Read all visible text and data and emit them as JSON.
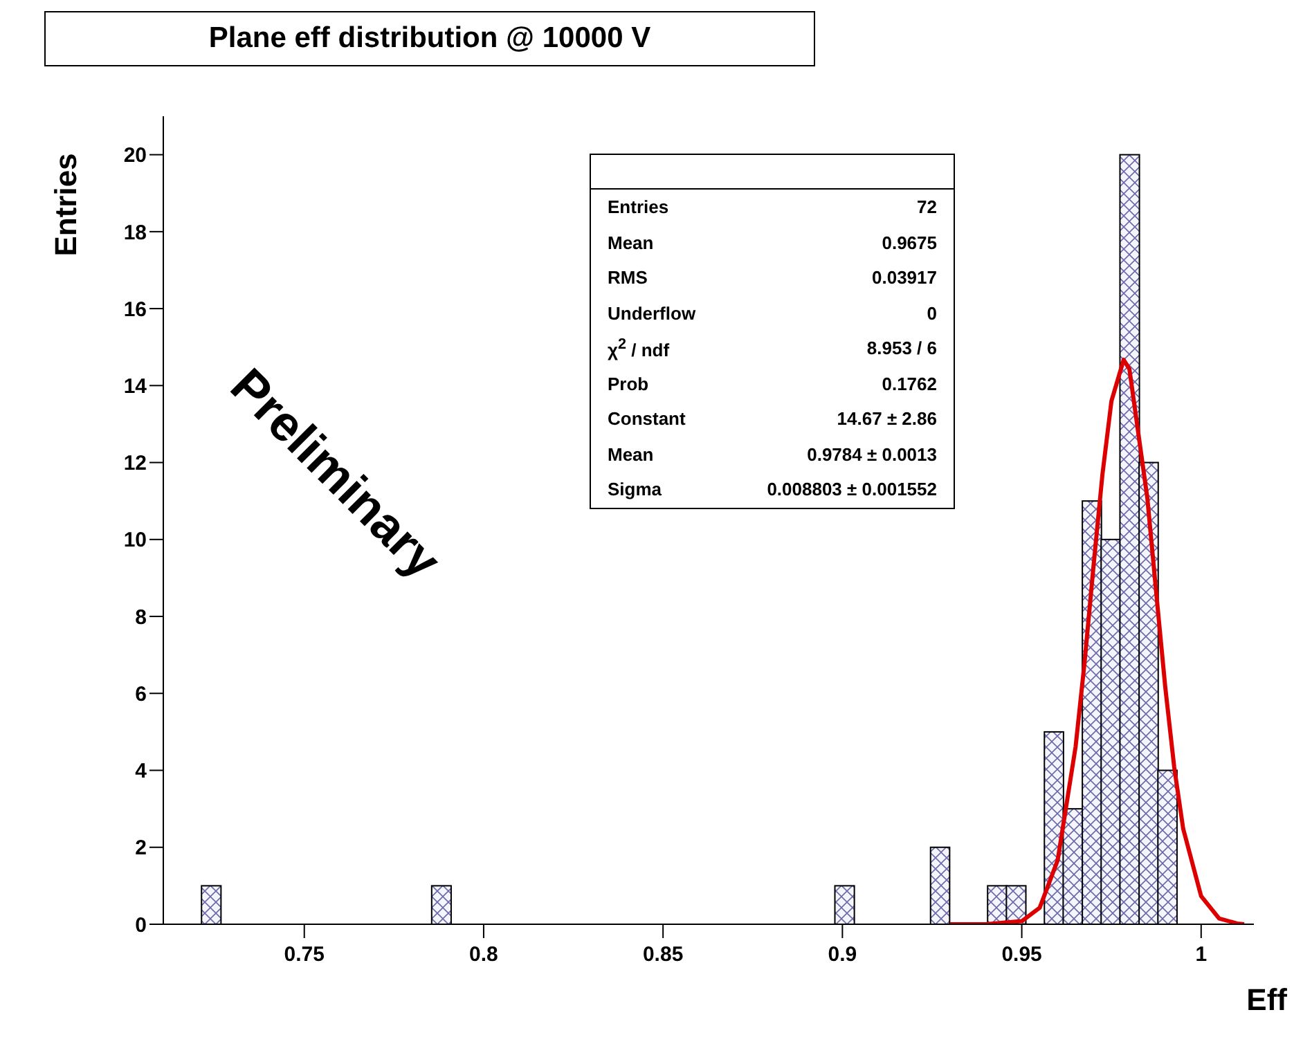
{
  "chart_data": {
    "type": "histogram",
    "title": "Plane eff distribution @ 10000 V",
    "xlabel": "Eff",
    "ylabel": "Entries",
    "bins": [
      0.7213,
      0.7267,
      0.7853,
      0.7907,
      0.8973,
      0.9027,
      0.924,
      0.9293,
      0.94,
      0.9453,
      0.9507,
      0.956,
      0.9613,
      0.9667,
      0.972,
      0.9773,
      0.9827,
      0.988,
      0.9933
    ],
    "values": [
      1,
      0,
      1,
      0,
      1,
      0,
      2,
      0,
      1,
      1,
      0,
      5,
      3,
      11,
      10,
      20,
      12,
      4
    ],
    "color": "#000000",
    "series": [
      {
        "type": "line",
        "color": "#dd0000",
        "x": [
          0.93,
          0.94,
          0.95,
          0.955,
          0.96,
          0.965,
          0.9675,
          0.97,
          0.9725,
          0.975,
          0.9784,
          0.98,
          0.985,
          0.9875,
          0.99,
          0.9925,
          0.995,
          1.0,
          1.005,
          1.01,
          1.012
        ],
        "values": [
          0,
          0,
          0.08,
          0.43,
          1.66,
          4.61,
          6.8,
          9.31,
          11.7,
          13.6,
          14.67,
          14.43,
          11.08,
          8.6,
          6.16,
          4.08,
          2.48,
          0.73,
          0.15,
          0.02,
          0
        ]
      }
    ],
    "xlim": [
      0.7107,
      1.0147
    ],
    "xticks": [
      0.75,
      0.8,
      0.85,
      0.9,
      0.95,
      1
    ],
    "ylim": [
      0,
      21
    ],
    "yticks": [
      0,
      2,
      4,
      6,
      8,
      10,
      12,
      14,
      16,
      18,
      20
    ],
    "grid": false,
    "legend": false,
    "annotations": [
      "Preliminary",
      "Entries",
      "72",
      "Mean",
      "0.9675",
      "RMS",
      "0.03917",
      "Underflow",
      "0",
      "χ$^{2}$ / ndf",
      "8.953 / 6",
      "Prob",
      "0.1762",
      "Constant",
      "14.67 ± 2.86",
      "Mean",
      "0.9784 ± 0.0013",
      "Sigma",
      "0.008803 ± 0.001552"
    ]
  }
}
